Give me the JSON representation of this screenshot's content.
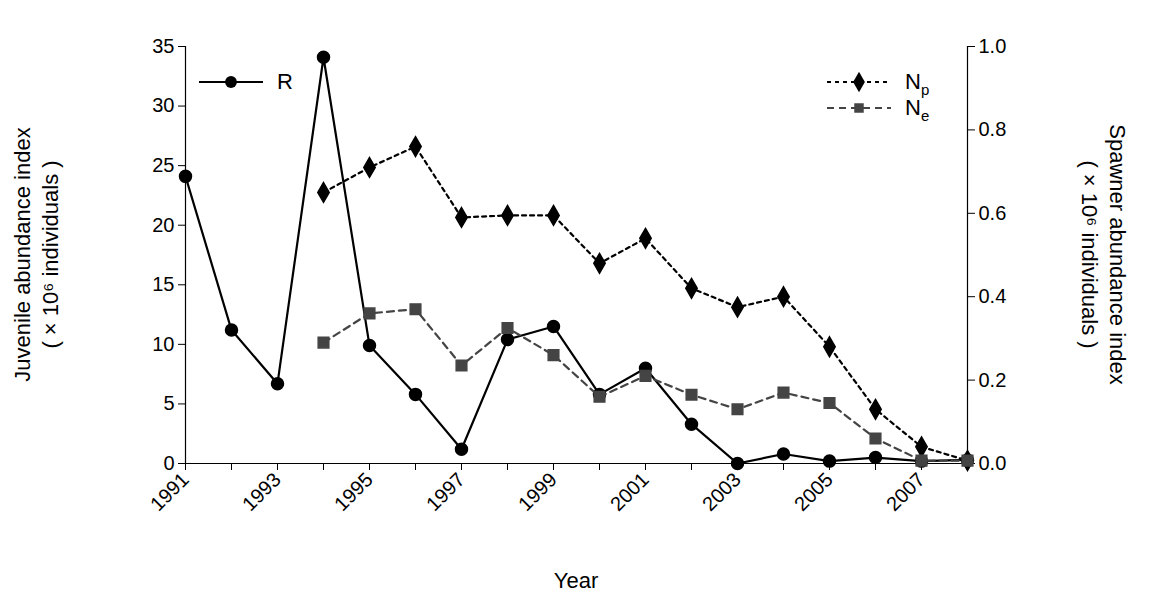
{
  "chart_data": {
    "type": "line",
    "xlabel": "Year",
    "ylabel": "Juvenile abundance index\n( × 10⁶ individuals )",
    "y2label": "Spawner abundance index\n( × 10⁶ individuals )",
    "x": [
      1991,
      1992,
      1993,
      1994,
      1995,
      1996,
      1997,
      1998,
      1999,
      2000,
      2001,
      2002,
      2003,
      2004,
      2005,
      2006,
      2007,
      2008
    ],
    "xlim": [
      1991,
      2008
    ],
    "xticks": [
      1991,
      1993,
      1995,
      1997,
      1999,
      2001,
      2003,
      2005,
      2007
    ],
    "ylim": [
      0,
      35
    ],
    "yticks": [
      0,
      5,
      10,
      15,
      20,
      25,
      30,
      35
    ],
    "y2lim": [
      0,
      1
    ],
    "y2ticks": [
      {
        "value": 0,
        "label": "0.0"
      },
      0.2,
      0.4,
      0.6,
      0.8,
      {
        "value": 1,
        "label": "1.0"
      }
    ],
    "legend": "top",
    "series": [
      {
        "name": "R",
        "color": "#000000",
        "marker": "circle",
        "line_style": "solid",
        "values": [
          24.1,
          11.2,
          6.7,
          34.1,
          9.9,
          5.8,
          1.2,
          10.4,
          11.5,
          5.8,
          8.0,
          3.3,
          0.0,
          0.8,
          0.2,
          0.5,
          0.2,
          0.3
        ]
      },
      {
        "name": "Np",
        "color": "#000000",
        "marker": "diamond",
        "line_style": "dotted",
        "axis": "y2",
        "values": [
          null,
          null,
          null,
          0.65,
          0.71,
          0.76,
          0.59,
          0.595,
          0.595,
          0.48,
          0.54,
          0.42,
          0.375,
          0.4,
          0.28,
          0.13,
          0.04,
          0.007
        ]
      },
      {
        "name": "Ne",
        "color": "#444444",
        "marker": "square",
        "line_style": "dashed",
        "axis": "y2",
        "values": [
          null,
          null,
          null,
          0.29,
          0.36,
          0.37,
          0.235,
          0.325,
          0.26,
          0.16,
          0.21,
          0.165,
          0.13,
          0.17,
          0.145,
          0.06,
          0.007,
          0.007
        ]
      }
    ]
  }
}
